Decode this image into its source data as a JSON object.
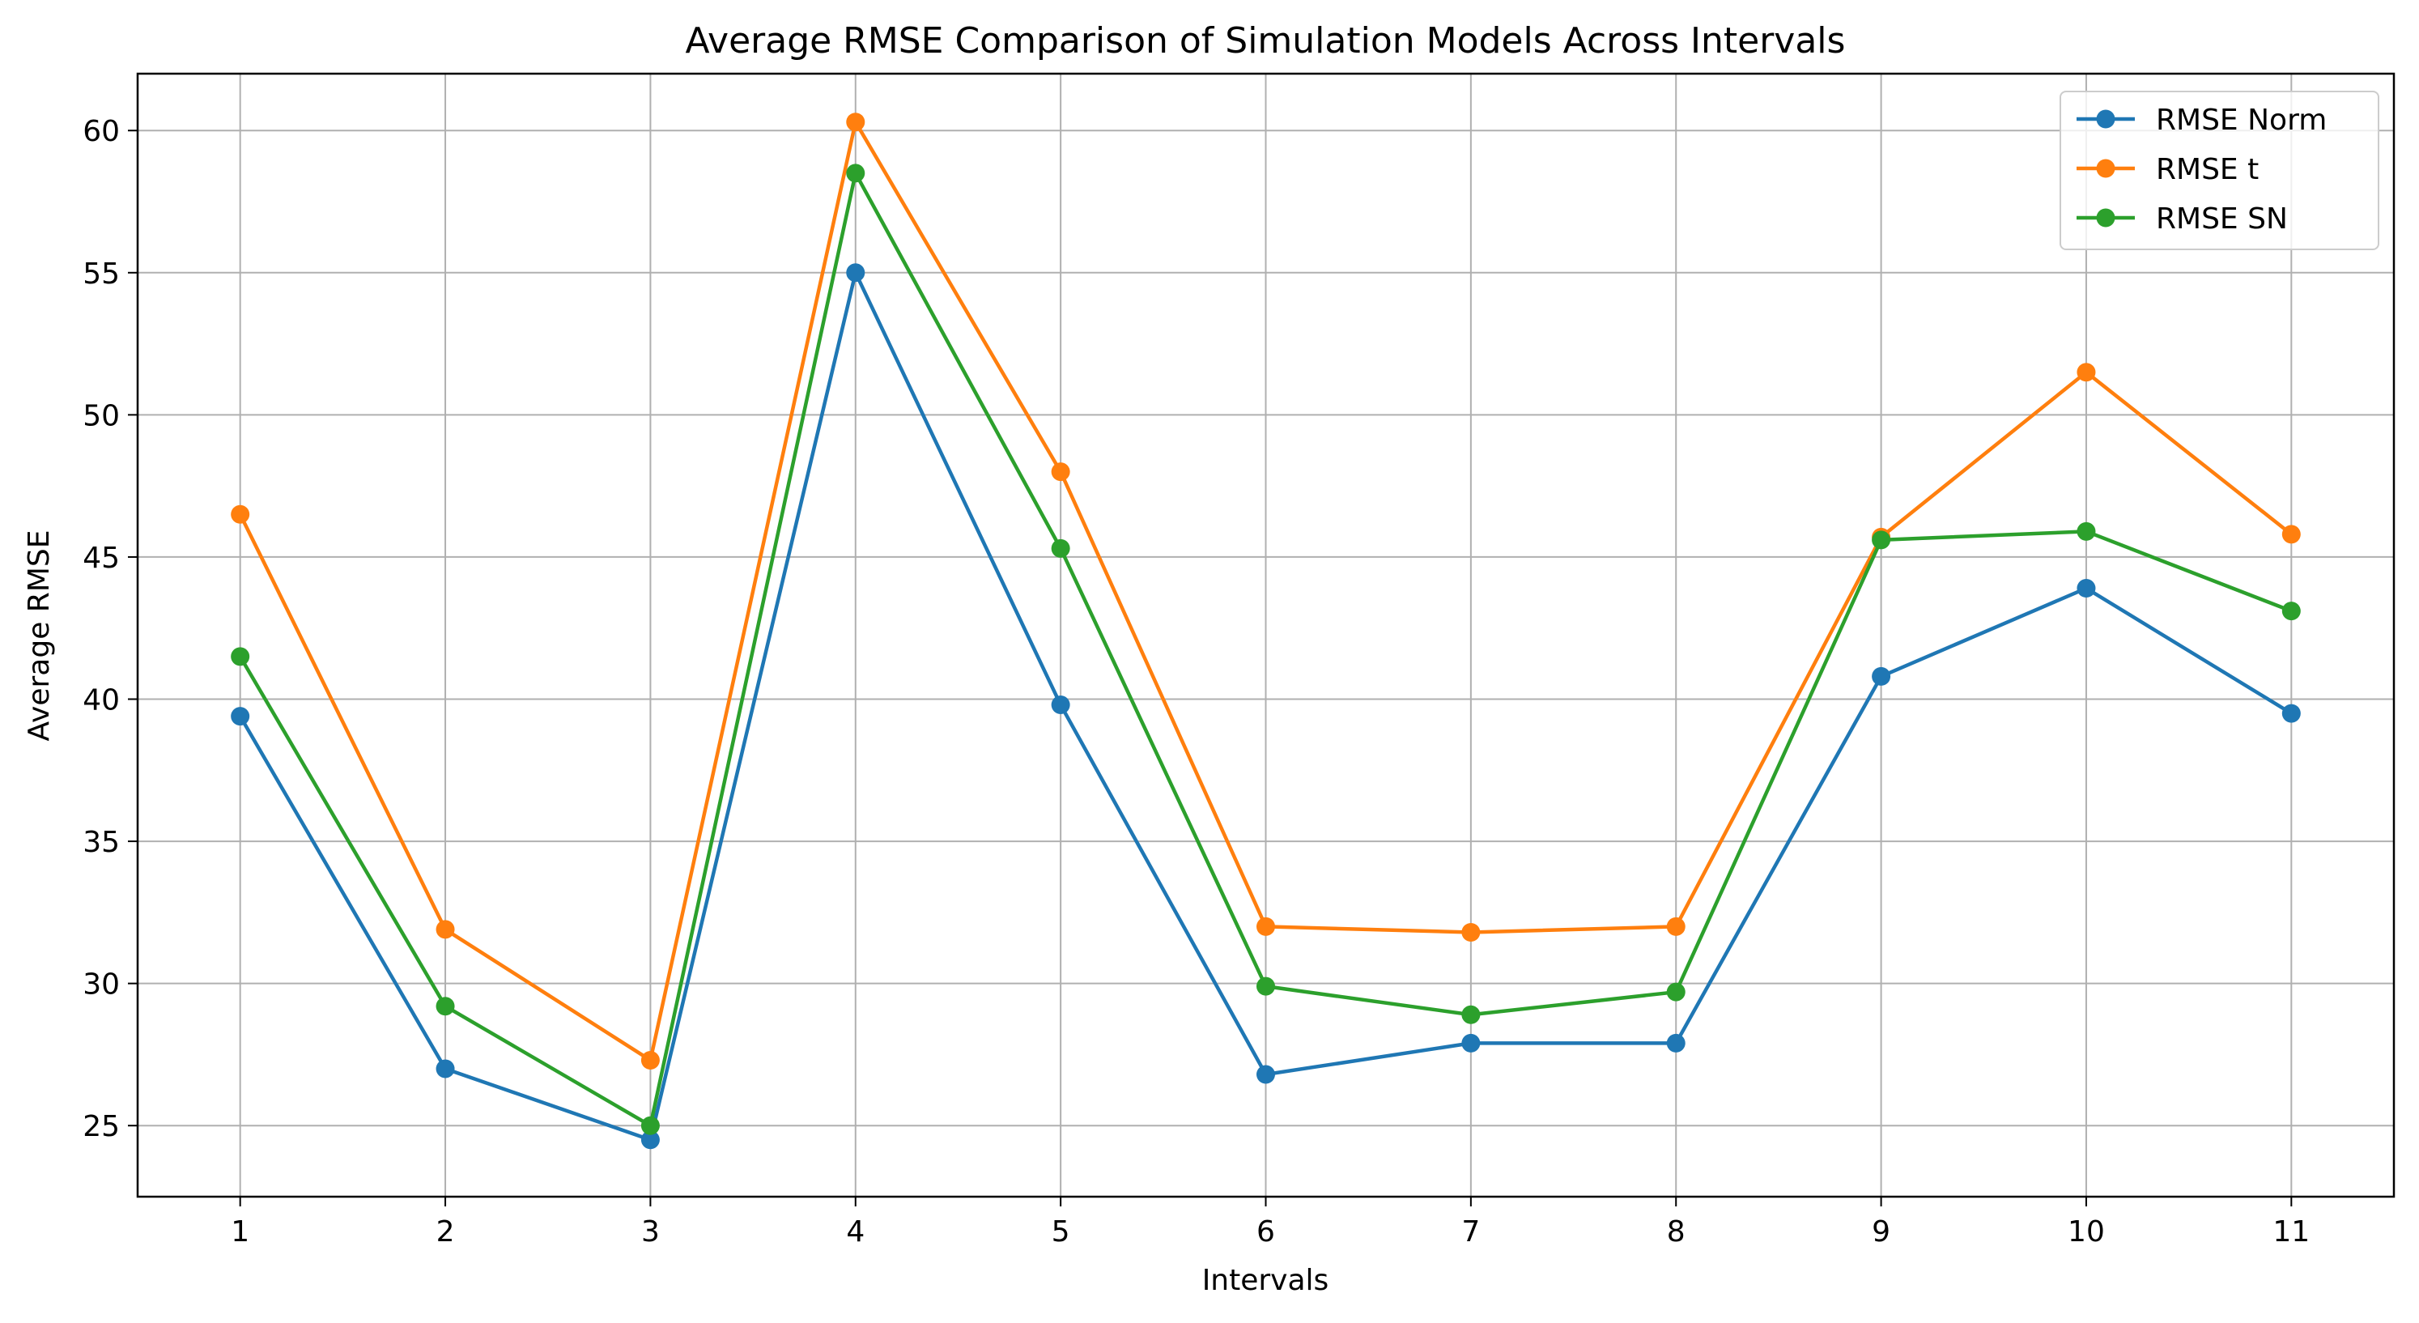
{
  "chart_data": {
    "type": "line",
    "title": "Average RMSE Comparison of Simulation Models Across Intervals",
    "xlabel": "Intervals",
    "ylabel": "Average RMSE",
    "x": [
      1,
      2,
      3,
      4,
      5,
      6,
      7,
      8,
      9,
      10,
      11
    ],
    "x_ticks": [
      "1",
      "2",
      "3",
      "4",
      "5",
      "6",
      "7",
      "8",
      "9",
      "10",
      "11"
    ],
    "xlim": [
      0.5,
      11.5
    ],
    "ylim": [
      22.5,
      62
    ],
    "y_ticks": [
      25,
      30,
      35,
      40,
      45,
      50,
      55,
      60
    ],
    "grid": true,
    "legend_position": "top-right",
    "series": [
      {
        "name": "RMSE Norm",
        "color": "#1f77b4",
        "marker": "circle",
        "values": [
          39.4,
          27.0,
          24.5,
          55.0,
          39.8,
          26.8,
          27.9,
          27.9,
          40.8,
          43.9,
          39.5
        ]
      },
      {
        "name": "RMSE t",
        "color": "#ff7f0e",
        "marker": "circle",
        "values": [
          46.5,
          31.9,
          27.3,
          60.3,
          48.0,
          32.0,
          31.8,
          32.0,
          45.7,
          51.5,
          45.8
        ]
      },
      {
        "name": "RMSE SN",
        "color": "#2ca02c",
        "marker": "circle",
        "values": [
          41.5,
          29.2,
          25.0,
          58.5,
          45.3,
          29.9,
          28.9,
          29.7,
          45.6,
          45.9,
          43.1
        ]
      }
    ]
  }
}
